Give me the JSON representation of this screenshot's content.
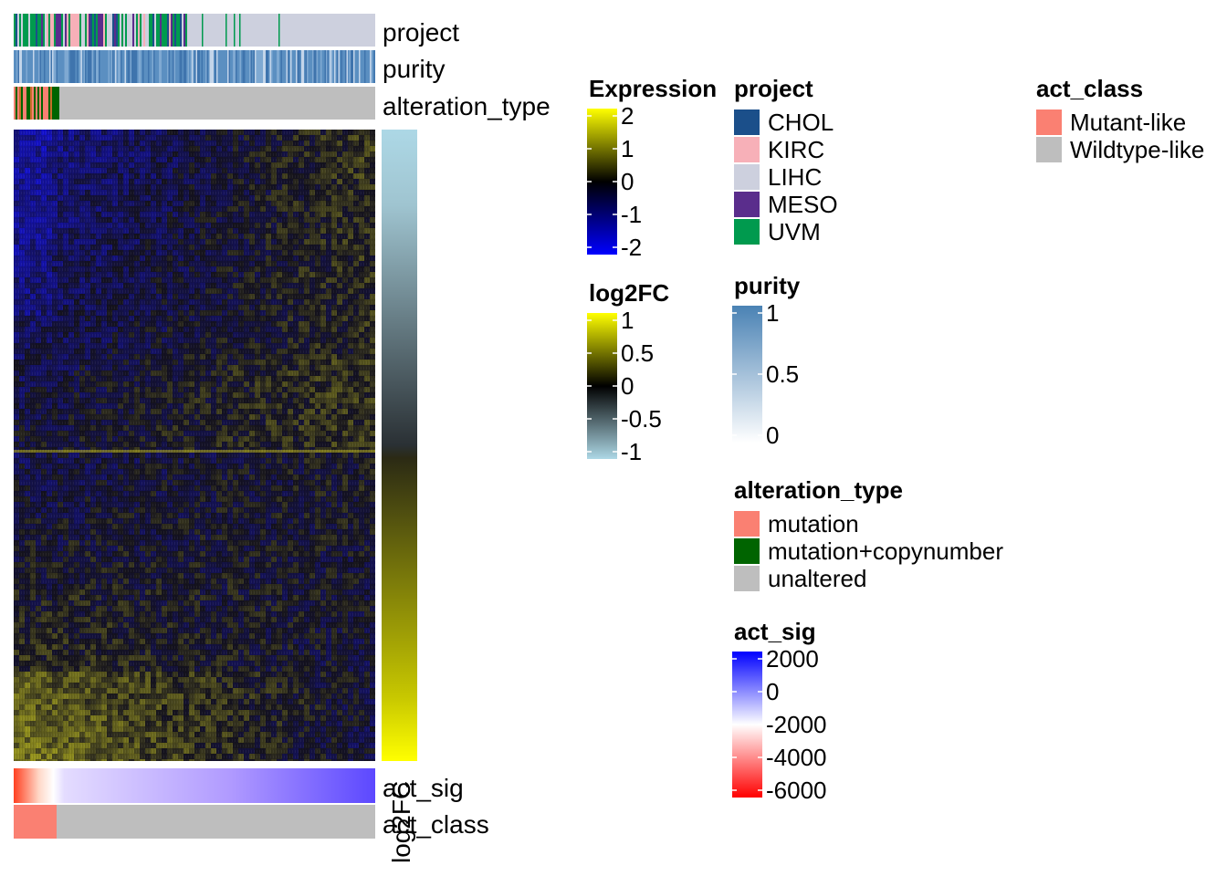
{
  "chart_data": {
    "type": "heatmap",
    "heatmap": {
      "name": "Expression",
      "scale": {
        "min": -2,
        "max": 2,
        "colors": [
          "#0000ff",
          "#000000",
          "#ffff00"
        ]
      },
      "row_blocks": [
        {
          "tendency": "top block: mostly dark/blue at left, more yellow at right"
        },
        {
          "tendency": "bottom block: mostly yellow at left, more blue at right"
        }
      ]
    },
    "top_annotations": [
      {
        "label": "project"
      },
      {
        "label": "purity"
      },
      {
        "label": "alteration_type"
      }
    ],
    "right_annotation": {
      "label": "log2FC"
    },
    "bottom_annotations": [
      {
        "label": "act_sig"
      },
      {
        "label": "act_class"
      }
    ],
    "legends": {
      "expression": {
        "title": "Expression",
        "ticks": [
          "2",
          "1",
          "0",
          "-1",
          "-2"
        ],
        "colors": [
          "#ffff00",
          "#000000",
          "#0000ff"
        ]
      },
      "log2fc": {
        "title": "log2FC",
        "ticks": [
          "1",
          "0.5",
          "0",
          "-0.5",
          "-1"
        ],
        "colors": [
          "#ffff00",
          "#000000",
          "#add8e6"
        ]
      },
      "project": {
        "title": "project",
        "items": [
          {
            "label": "CHOL",
            "color": "#1b4f8a"
          },
          {
            "label": "KIRC",
            "color": "#f7b0b8"
          },
          {
            "label": "LIHC",
            "color": "#cdd0de"
          },
          {
            "label": "MESO",
            "color": "#5a2d8c"
          },
          {
            "label": "UVM",
            "color": "#009a4e"
          }
        ]
      },
      "purity": {
        "title": "purity",
        "ticks": [
          "1",
          "0.5",
          "0"
        ],
        "colors": [
          "#4a82b4",
          "#ffffff"
        ]
      },
      "alteration_type": {
        "title": "alteration_type",
        "items": [
          {
            "label": "mutation",
            "color": "#fa8072"
          },
          {
            "label": "mutation+copynumber",
            "color": "#006400"
          },
          {
            "label": "unaltered",
            "color": "#bebebe"
          }
        ]
      },
      "act_sig": {
        "title": "act_sig",
        "ticks": [
          "2000",
          "0",
          "-2000",
          "-4000",
          "-6000"
        ],
        "colors": [
          "#0000ff",
          "#ffffff",
          "#ff0000"
        ]
      },
      "act_class": {
        "title": "act_class",
        "items": [
          {
            "label": "Mutant-like",
            "color": "#fa8072"
          },
          {
            "label": "Wildtype-like",
            "color": "#bebebe"
          }
        ]
      }
    }
  }
}
